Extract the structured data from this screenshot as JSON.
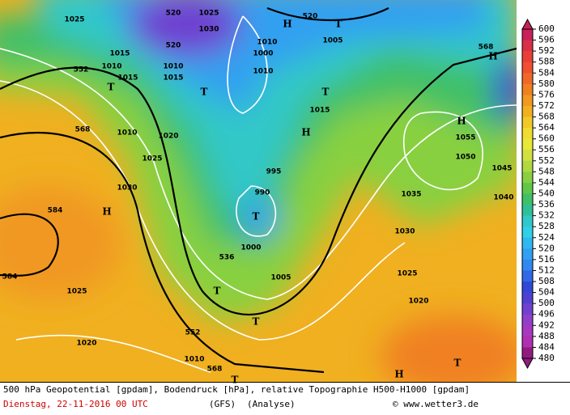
{
  "colorbar": {
    "ticks": [
      600,
      596,
      592,
      588,
      584,
      580,
      576,
      572,
      568,
      564,
      560,
      556,
      552,
      548,
      544,
      540,
      536,
      532,
      528,
      524,
      520,
      516,
      512,
      508,
      504,
      500,
      496,
      492,
      488,
      484,
      480
    ],
    "colors": [
      "#c8205a",
      "#d83048",
      "#e84038",
      "#f05030",
      "#f06828",
      "#f08020",
      "#f09820",
      "#f0b020",
      "#f0c828",
      "#f0dc30",
      "#e8e838",
      "#d0e040",
      "#b0d840",
      "#88d040",
      "#60c848",
      "#40c068",
      "#30c098",
      "#30c8c8",
      "#30d0e8",
      "#30b8f0",
      "#30a0f0",
      "#3088f0",
      "#3068e8",
      "#3048d8",
      "#5040d0",
      "#7040d0",
      "#9040c8",
      "#a838c0",
      "#b030b0",
      "#901c80"
    ]
  },
  "map_labels": [
    "1025",
    "520",
    "1030",
    "1025",
    "1015",
    "552",
    "1010",
    "1015",
    "T",
    "1010",
    "1015",
    "T",
    "520",
    "1010",
    "1000",
    "1010",
    "H",
    "1005",
    "520",
    "T",
    "568",
    "H",
    "T",
    "1015",
    "H",
    "H",
    "1055",
    "1050",
    "1045",
    "1040",
    "1035",
    "1030",
    "1025",
    "1020",
    "568",
    "1010",
    "1020",
    "1025",
    "1030",
    "H",
    "584",
    "584",
    "1025",
    "1020",
    "990",
    "T",
    "1000",
    "995",
    "1005",
    "536",
    "T",
    "552",
    "T",
    "568",
    "1010",
    "T",
    "H",
    "T"
  ],
  "footer": {
    "line1": "500 hPa Geopotential [gpdam], Bodendruck [hPa], relative Topographie H500-H1000 [gpdam]",
    "date": "Dienstag, 22-11-2016  00 UTC",
    "model": "(GFS)",
    "run": "(Analyse)",
    "credit": "© www.wetter3.de"
  }
}
